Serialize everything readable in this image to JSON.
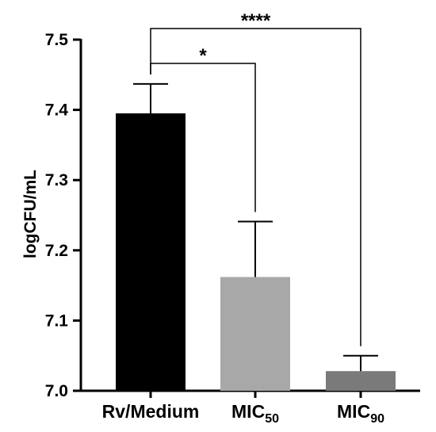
{
  "chart_data": {
    "type": "bar",
    "ylabel": "logCFU/mL",
    "xlabel": "",
    "ylim": [
      7.0,
      7.5
    ],
    "yticks": [
      "7.0",
      "7.1",
      "7.2",
      "7.3",
      "7.4",
      "7.5"
    ],
    "categories": [
      {
        "main": "Rv/Medium",
        "sub": ""
      },
      {
        "main": "MIC",
        "sub": "50"
      },
      {
        "main": "MIC",
        "sub": "90"
      }
    ],
    "values": [
      7.395,
      7.162,
      7.028
    ],
    "errors": [
      0.042,
      0.079,
      0.022
    ],
    "colors": [
      "#000000",
      "#a8a8a8",
      "#7a7a7a"
    ],
    "significance": [
      {
        "from": 0,
        "to": 1,
        "label": "*"
      },
      {
        "from": 0,
        "to": 2,
        "label": "****"
      }
    ]
  }
}
